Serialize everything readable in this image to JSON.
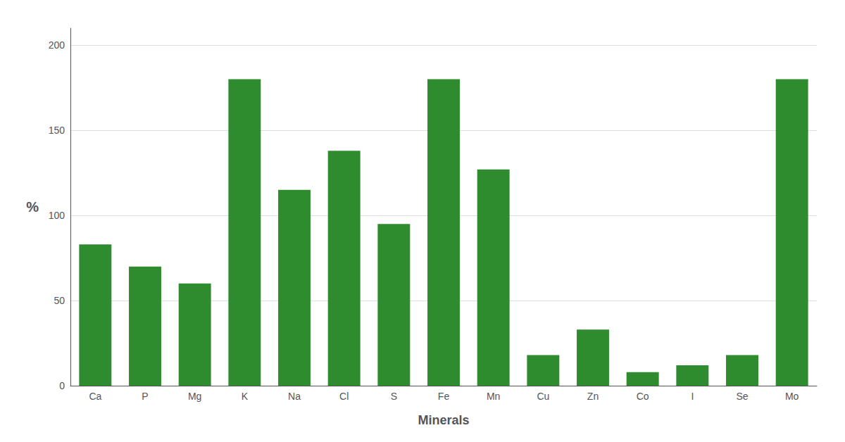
{
  "chart_data": {
    "type": "bar",
    "categories": [
      "Ca",
      "P",
      "Mg",
      "K",
      "Na",
      "Cl",
      "S",
      "Fe",
      "Mn",
      "Cu",
      "Zn",
      "Co",
      "I",
      "Se",
      "Mo"
    ],
    "values": [
      83,
      70,
      60,
      180,
      115,
      138,
      95,
      180,
      127,
      18,
      33,
      8,
      12,
      18,
      180
    ],
    "color": "#2e8b2e",
    "xlabel": "Minerals",
    "ylabel": "%",
    "ylim": [
      0,
      210
    ],
    "yticks": [
      0,
      50,
      100,
      150,
      200
    ],
    "grid": true
  }
}
